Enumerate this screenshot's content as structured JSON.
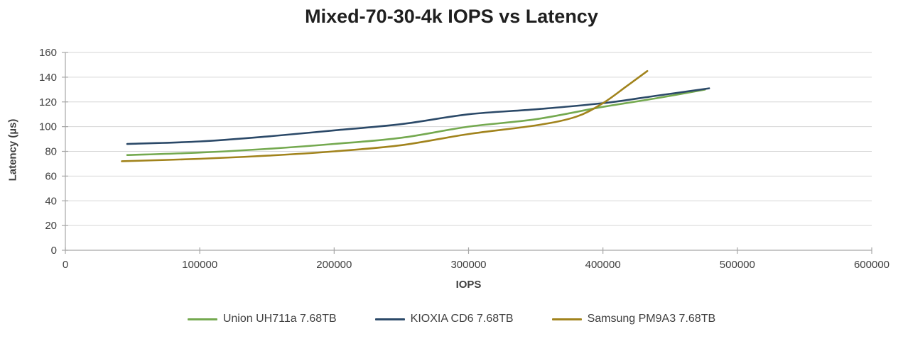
{
  "chart_data": {
    "type": "line",
    "title": "Mixed-70-30-4k IOPS vs Latency",
    "xlabel": "IOPS",
    "ylabel": "Latency (µs)",
    "xlim": [
      0,
      600000
    ],
    "ylim": [
      0,
      160
    ],
    "x_ticks": [
      0,
      100000,
      200000,
      300000,
      400000,
      500000,
      600000
    ],
    "y_ticks": [
      0,
      20,
      40,
      60,
      80,
      100,
      120,
      140,
      160
    ],
    "grid": "horizontal-only",
    "legend_position": "bottom-center",
    "axis_color": "#a6a6a6",
    "gridline_color": "#d6d6d6",
    "series": [
      {
        "name": "Union UH711a 7.68TB",
        "color": "#74a94f",
        "points": [
          [
            46000,
            77
          ],
          [
            100000,
            79
          ],
          [
            150000,
            82
          ],
          [
            200000,
            86
          ],
          [
            250000,
            91
          ],
          [
            300000,
            100
          ],
          [
            350000,
            106
          ],
          [
            400000,
            116
          ],
          [
            440000,
            123
          ],
          [
            476000,
            130
          ]
        ]
      },
      {
        "name": "KIOXIA CD6 7.68TB",
        "color": "#2b4968",
        "points": [
          [
            46000,
            86
          ],
          [
            100000,
            88
          ],
          [
            150000,
            92
          ],
          [
            200000,
            97
          ],
          [
            250000,
            102
          ],
          [
            300000,
            110
          ],
          [
            350000,
            114
          ],
          [
            400000,
            119
          ],
          [
            440000,
            125
          ],
          [
            479000,
            131
          ]
        ]
      },
      {
        "name": "Samsung PM9A3 7.68TB",
        "color": "#a1831c",
        "points": [
          [
            42000,
            72
          ],
          [
            100000,
            74
          ],
          [
            150000,
            76.5
          ],
          [
            200000,
            80
          ],
          [
            250000,
            85
          ],
          [
            300000,
            94
          ],
          [
            350000,
            101
          ],
          [
            380000,
            108
          ],
          [
            400000,
            119
          ],
          [
            418000,
            133
          ],
          [
            433000,
            145
          ]
        ]
      }
    ]
  }
}
